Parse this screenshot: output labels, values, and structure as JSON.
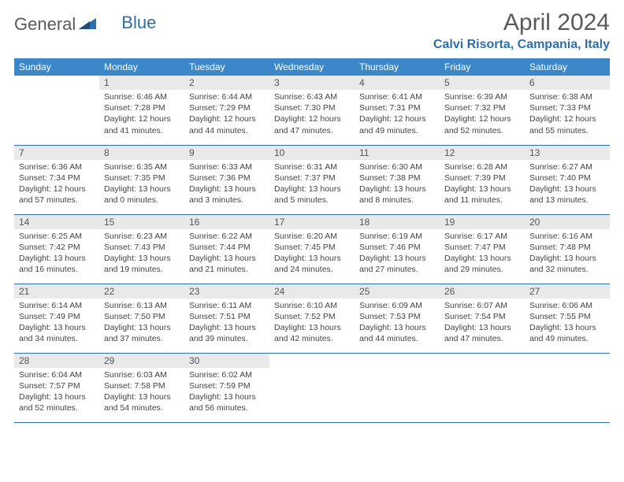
{
  "logo": {
    "part1": "General",
    "part2": "Blue"
  },
  "title": "April 2024",
  "location": "Calvi Risorta, Campania, Italy",
  "colors": {
    "header_bg": "#3b87c8",
    "header_text": "#ffffff",
    "daynum_bg": "#e9e9e9",
    "border": "#2f6fa8",
    "accent": "#2f6fa8",
    "logo_gray": "#5a5a5a"
  },
  "weekdays": [
    "Sunday",
    "Monday",
    "Tuesday",
    "Wednesday",
    "Thursday",
    "Friday",
    "Saturday"
  ],
  "weeks": [
    [
      {
        "empty": true
      },
      {
        "n": "1",
        "sr": "Sunrise: 6:46 AM",
        "ss": "Sunset: 7:28 PM",
        "dl": "Daylight: 12 hours and 41 minutes."
      },
      {
        "n": "2",
        "sr": "Sunrise: 6:44 AM",
        "ss": "Sunset: 7:29 PM",
        "dl": "Daylight: 12 hours and 44 minutes."
      },
      {
        "n": "3",
        "sr": "Sunrise: 6:43 AM",
        "ss": "Sunset: 7:30 PM",
        "dl": "Daylight: 12 hours and 47 minutes."
      },
      {
        "n": "4",
        "sr": "Sunrise: 6:41 AM",
        "ss": "Sunset: 7:31 PM",
        "dl": "Daylight: 12 hours and 49 minutes."
      },
      {
        "n": "5",
        "sr": "Sunrise: 6:39 AM",
        "ss": "Sunset: 7:32 PM",
        "dl": "Daylight: 12 hours and 52 minutes."
      },
      {
        "n": "6",
        "sr": "Sunrise: 6:38 AM",
        "ss": "Sunset: 7:33 PM",
        "dl": "Daylight: 12 hours and 55 minutes."
      }
    ],
    [
      {
        "n": "7",
        "sr": "Sunrise: 6:36 AM",
        "ss": "Sunset: 7:34 PM",
        "dl": "Daylight: 12 hours and 57 minutes."
      },
      {
        "n": "8",
        "sr": "Sunrise: 6:35 AM",
        "ss": "Sunset: 7:35 PM",
        "dl": "Daylight: 13 hours and 0 minutes."
      },
      {
        "n": "9",
        "sr": "Sunrise: 6:33 AM",
        "ss": "Sunset: 7:36 PM",
        "dl": "Daylight: 13 hours and 3 minutes."
      },
      {
        "n": "10",
        "sr": "Sunrise: 6:31 AM",
        "ss": "Sunset: 7:37 PM",
        "dl": "Daylight: 13 hours and 5 minutes."
      },
      {
        "n": "11",
        "sr": "Sunrise: 6:30 AM",
        "ss": "Sunset: 7:38 PM",
        "dl": "Daylight: 13 hours and 8 minutes."
      },
      {
        "n": "12",
        "sr": "Sunrise: 6:28 AM",
        "ss": "Sunset: 7:39 PM",
        "dl": "Daylight: 13 hours and 11 minutes."
      },
      {
        "n": "13",
        "sr": "Sunrise: 6:27 AM",
        "ss": "Sunset: 7:40 PM",
        "dl": "Daylight: 13 hours and 13 minutes."
      }
    ],
    [
      {
        "n": "14",
        "sr": "Sunrise: 6:25 AM",
        "ss": "Sunset: 7:42 PM",
        "dl": "Daylight: 13 hours and 16 minutes."
      },
      {
        "n": "15",
        "sr": "Sunrise: 6:23 AM",
        "ss": "Sunset: 7:43 PM",
        "dl": "Daylight: 13 hours and 19 minutes."
      },
      {
        "n": "16",
        "sr": "Sunrise: 6:22 AM",
        "ss": "Sunset: 7:44 PM",
        "dl": "Daylight: 13 hours and 21 minutes."
      },
      {
        "n": "17",
        "sr": "Sunrise: 6:20 AM",
        "ss": "Sunset: 7:45 PM",
        "dl": "Daylight: 13 hours and 24 minutes."
      },
      {
        "n": "18",
        "sr": "Sunrise: 6:19 AM",
        "ss": "Sunset: 7:46 PM",
        "dl": "Daylight: 13 hours and 27 minutes."
      },
      {
        "n": "19",
        "sr": "Sunrise: 6:17 AM",
        "ss": "Sunset: 7:47 PM",
        "dl": "Daylight: 13 hours and 29 minutes."
      },
      {
        "n": "20",
        "sr": "Sunrise: 6:16 AM",
        "ss": "Sunset: 7:48 PM",
        "dl": "Daylight: 13 hours and 32 minutes."
      }
    ],
    [
      {
        "n": "21",
        "sr": "Sunrise: 6:14 AM",
        "ss": "Sunset: 7:49 PM",
        "dl": "Daylight: 13 hours and 34 minutes."
      },
      {
        "n": "22",
        "sr": "Sunrise: 6:13 AM",
        "ss": "Sunset: 7:50 PM",
        "dl": "Daylight: 13 hours and 37 minutes."
      },
      {
        "n": "23",
        "sr": "Sunrise: 6:11 AM",
        "ss": "Sunset: 7:51 PM",
        "dl": "Daylight: 13 hours and 39 minutes."
      },
      {
        "n": "24",
        "sr": "Sunrise: 6:10 AM",
        "ss": "Sunset: 7:52 PM",
        "dl": "Daylight: 13 hours and 42 minutes."
      },
      {
        "n": "25",
        "sr": "Sunrise: 6:09 AM",
        "ss": "Sunset: 7:53 PM",
        "dl": "Daylight: 13 hours and 44 minutes."
      },
      {
        "n": "26",
        "sr": "Sunrise: 6:07 AM",
        "ss": "Sunset: 7:54 PM",
        "dl": "Daylight: 13 hours and 47 minutes."
      },
      {
        "n": "27",
        "sr": "Sunrise: 6:06 AM",
        "ss": "Sunset: 7:55 PM",
        "dl": "Daylight: 13 hours and 49 minutes."
      }
    ],
    [
      {
        "n": "28",
        "sr": "Sunrise: 6:04 AM",
        "ss": "Sunset: 7:57 PM",
        "dl": "Daylight: 13 hours and 52 minutes."
      },
      {
        "n": "29",
        "sr": "Sunrise: 6:03 AM",
        "ss": "Sunset: 7:58 PM",
        "dl": "Daylight: 13 hours and 54 minutes."
      },
      {
        "n": "30",
        "sr": "Sunrise: 6:02 AM",
        "ss": "Sunset: 7:59 PM",
        "dl": "Daylight: 13 hours and 56 minutes."
      },
      {
        "empty": true
      },
      {
        "empty": true
      },
      {
        "empty": true
      },
      {
        "empty": true
      }
    ]
  ]
}
